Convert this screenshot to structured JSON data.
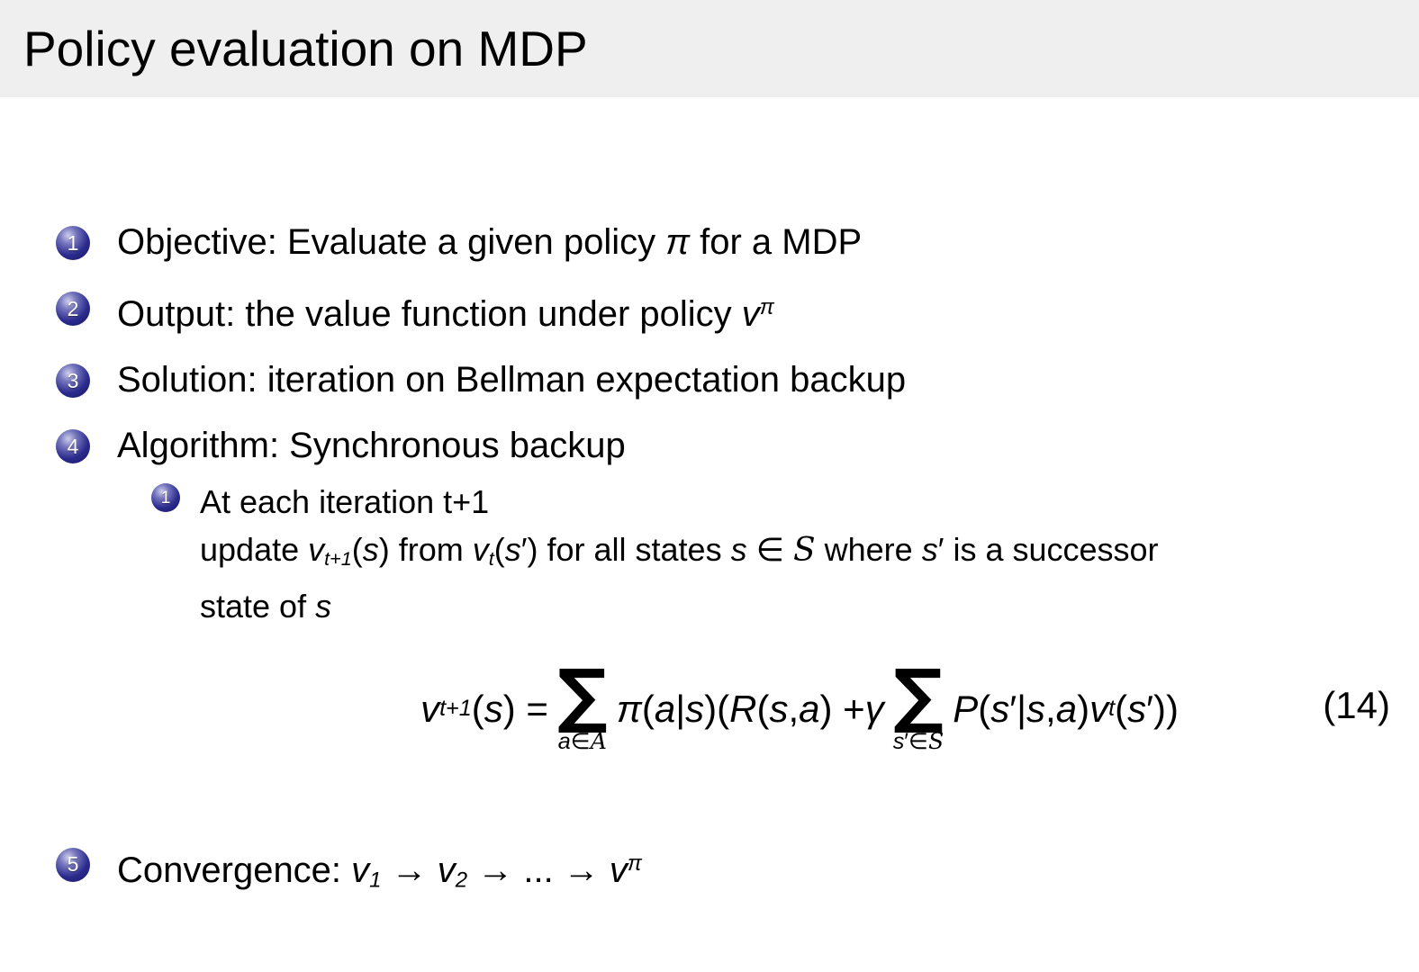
{
  "title": "Policy evaluation on MDP",
  "colors": {
    "titlebar_bg": "#efefef",
    "ball_color": "#2b2b8e",
    "text_color": "#000000",
    "bg": "#ffffff"
  },
  "items": [
    {
      "num": "1",
      "runs": [
        {
          "k": "t",
          "v": "Objective:  Evaluate a given policy "
        },
        {
          "k": "m",
          "v": "π"
        },
        {
          "k": "t",
          "v": " for a MDP"
        }
      ]
    },
    {
      "num": "2",
      "runs": [
        {
          "k": "t",
          "v": "Output:  the value function under policy "
        },
        {
          "k": "m",
          "v": "v"
        },
        {
          "k": "sup",
          "v": "π"
        }
      ]
    },
    {
      "num": "3",
      "runs": [
        {
          "k": "t",
          "v": "Solution:  iteration on Bellman expectation backup"
        }
      ]
    },
    {
      "num": "4",
      "runs": [
        {
          "k": "t",
          "v": "Algorithm:  Synchronous backup"
        }
      ]
    },
    {
      "num": "5",
      "runs": [
        {
          "k": "t",
          "v": "Convergence:  "
        },
        {
          "k": "m",
          "v": "v"
        },
        {
          "k": "sub",
          "v": "1"
        },
        {
          "k": "t",
          "v": " → "
        },
        {
          "k": "m",
          "v": "v"
        },
        {
          "k": "sub",
          "v": "2"
        },
        {
          "k": "t",
          "v": " → ... → "
        },
        {
          "k": "m",
          "v": "v"
        },
        {
          "k": "sup",
          "v": "π"
        }
      ]
    }
  ],
  "subitem": {
    "num": "1",
    "lines": {
      "line1": [
        {
          "k": "t",
          "v": "At each iteration t+1"
        }
      ],
      "line2": [
        {
          "k": "t",
          "v": "update "
        },
        {
          "k": "m",
          "v": "v"
        },
        {
          "k": "sub",
          "v": "t+1"
        },
        {
          "k": "t",
          "v": "("
        },
        {
          "k": "m",
          "v": "s"
        },
        {
          "k": "t",
          "v": ") from "
        },
        {
          "k": "m",
          "v": "v"
        },
        {
          "k": "sub",
          "v": "t"
        },
        {
          "k": "t",
          "v": "("
        },
        {
          "k": "m",
          "v": "s"
        },
        {
          "k": "t",
          "v": "′) for all states "
        },
        {
          "k": "m",
          "v": "s"
        },
        {
          "k": "t",
          "v": " ∈ "
        },
        {
          "k": "cal",
          "v": "S"
        },
        {
          "k": "t",
          "v": " where "
        },
        {
          "k": "m",
          "v": "s"
        },
        {
          "k": "t",
          "v": "′ is a successor"
        }
      ],
      "line3": [
        {
          "k": "t",
          "v": "state of "
        },
        {
          "k": "m",
          "v": "s"
        }
      ]
    }
  },
  "formula": {
    "number": "(14)",
    "runs": [
      {
        "k": "m",
        "v": "v"
      },
      {
        "k": "sub",
        "v": "t+1"
      },
      {
        "k": "t",
        "v": "("
      },
      {
        "k": "m",
        "v": "s"
      },
      {
        "k": "t",
        "v": ") = "
      },
      {
        "k": "sum",
        "limits": [
          {
            "k": "m",
            "v": "a"
          },
          {
            "k": "t",
            "v": "∈"
          },
          {
            "k": "cal",
            "v": "A"
          }
        ]
      },
      {
        "k": "m",
        "v": "π"
      },
      {
        "k": "t",
        "v": "("
      },
      {
        "k": "m",
        "v": "a"
      },
      {
        "k": "t",
        "v": "|"
      },
      {
        "k": "m",
        "v": "s"
      },
      {
        "k": "t",
        "v": ")("
      },
      {
        "k": "m",
        "v": "R"
      },
      {
        "k": "t",
        "v": "("
      },
      {
        "k": "m",
        "v": "s"
      },
      {
        "k": "t",
        "v": ", "
      },
      {
        "k": "m",
        "v": "a"
      },
      {
        "k": "t",
        "v": ") + "
      },
      {
        "k": "m",
        "v": "γ"
      },
      {
        "k": "sum",
        "limits": [
          {
            "k": "m",
            "v": "s"
          },
          {
            "k": "t",
            "v": "′∈"
          },
          {
            "k": "cal",
            "v": "S"
          }
        ]
      },
      {
        "k": "m",
        "v": "P"
      },
      {
        "k": "t",
        "v": "("
      },
      {
        "k": "m",
        "v": "s"
      },
      {
        "k": "t",
        "v": "′|"
      },
      {
        "k": "m",
        "v": "s"
      },
      {
        "k": "t",
        "v": ", "
      },
      {
        "k": "m",
        "v": "a"
      },
      {
        "k": "t",
        "v": ")"
      },
      {
        "k": "m",
        "v": "v"
      },
      {
        "k": "sub",
        "v": "t"
      },
      {
        "k": "t",
        "v": "("
      },
      {
        "k": "m",
        "v": "s"
      },
      {
        "k": "t",
        "v": "′))"
      }
    ]
  }
}
